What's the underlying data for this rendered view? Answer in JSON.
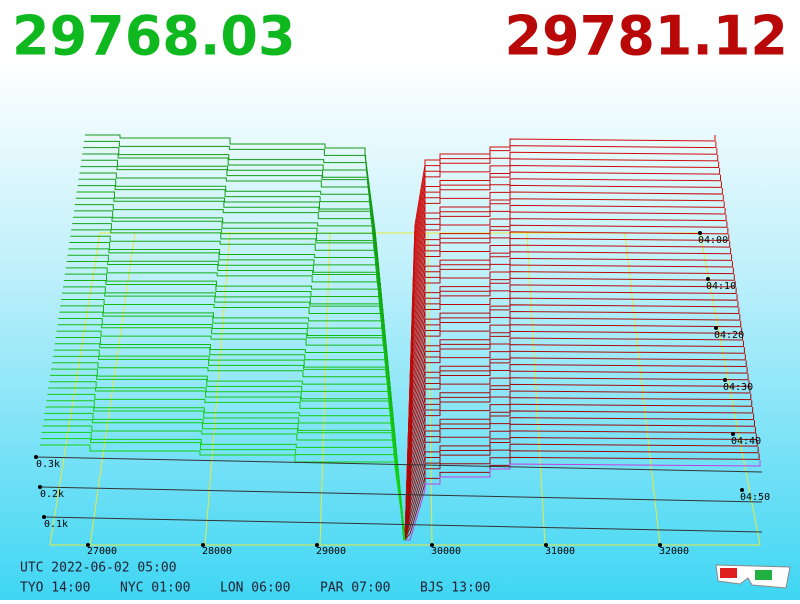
{
  "prices": {
    "bid": "29768.03",
    "ask": "29781.12"
  },
  "price_axis": [
    "27000",
    "28000",
    "29000",
    "30000",
    "31000",
    "32000"
  ],
  "depth_axis": [
    "0.3k",
    "0.2k",
    "0.1k"
  ],
  "time_axis": [
    "04:00",
    "04:10",
    "04:20",
    "04:30",
    "04:40",
    "04:50"
  ],
  "clock": {
    "utc": "UTC 2022-06-02 05:00",
    "zones": [
      "TYO 14:00",
      "NYC 01:00",
      "LON 06:00",
      "PAR 07:00",
      "BJS 13:00"
    ]
  }
}
